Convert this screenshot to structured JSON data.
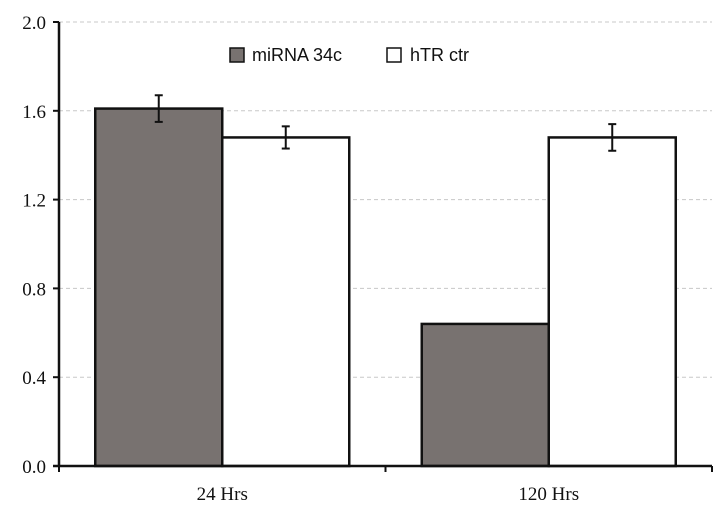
{
  "chart_data": {
    "type": "bar",
    "categories": [
      "24 Hrs",
      "120 Hrs"
    ],
    "series": [
      {
        "name": "miRNA 34c",
        "values": [
          1.61,
          0.64
        ],
        "errors": [
          0.06,
          0
        ],
        "color": "#787270"
      },
      {
        "name": "hTR ctr",
        "values": [
          1.48,
          1.48
        ],
        "errors": [
          0.05,
          0.06
        ],
        "color": "#ffffff"
      }
    ],
    "y_ticks": [
      "0.0",
      "0.4",
      "0.8",
      "1.2",
      "1.6",
      "2.0"
    ],
    "ylim": [
      0,
      2.0
    ],
    "grid": true,
    "legend_position": "top-center",
    "title": "",
    "xlabel": "",
    "ylabel": ""
  }
}
